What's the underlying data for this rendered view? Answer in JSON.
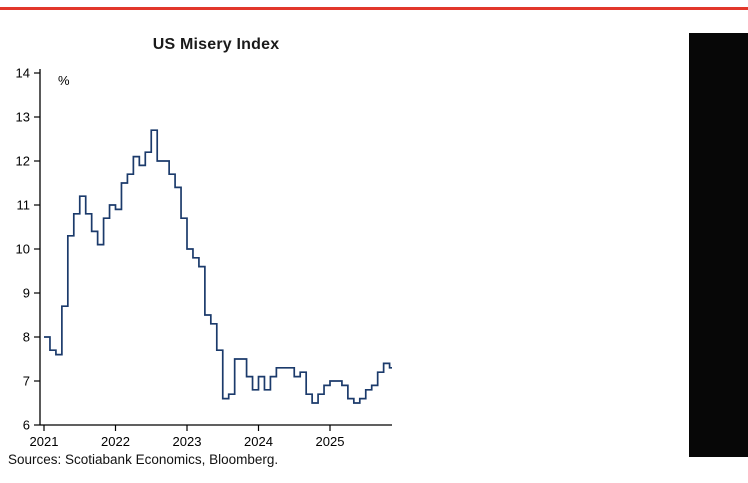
{
  "page": {
    "accent_red": "#e2372b",
    "dark_panel_color": "#070707",
    "background": "#ffffff"
  },
  "chart": {
    "title": "US Misery Index",
    "unit_label": "%"
  },
  "footer": {
    "sources": "Sources: Scotiabank Economics, Bloomberg."
  },
  "chart_data": {
    "type": "line",
    "subtype": "step-post",
    "title": "US Misery Index",
    "xlabel": "",
    "ylabel": "%",
    "ylim": [
      6,
      14
    ],
    "yticks": [
      14,
      13,
      12,
      11,
      10,
      9,
      8,
      7,
      6
    ],
    "xticks": [
      2021,
      2022,
      2023,
      2024,
      2025
    ],
    "x_start_year": 2021,
    "x_frequency": "monthly",
    "grid": false,
    "legend": "none",
    "axis_color": "#000000",
    "series": [
      {
        "name": "US Misery Index",
        "color": "#1b3a6b",
        "line_width": 1.7,
        "monthly_values": [
          8.0,
          7.7,
          7.6,
          8.7,
          10.3,
          10.8,
          11.2,
          10.8,
          10.4,
          10.1,
          10.7,
          11.0,
          10.9,
          11.5,
          11.7,
          12.1,
          11.9,
          12.2,
          12.7,
          12.0,
          12.0,
          11.7,
          11.4,
          10.7,
          10.0,
          9.8,
          9.6,
          8.5,
          8.3,
          7.7,
          6.6,
          6.7,
          7.5,
          7.5,
          7.1,
          6.8,
          7.1,
          6.8,
          7.1,
          7.3,
          7.3,
          7.3,
          7.1,
          7.2,
          6.7,
          6.5,
          6.7,
          6.9,
          7.0,
          7.0,
          6.9,
          6.6,
          6.5,
          6.6,
          6.8,
          6.9,
          7.2,
          7.4,
          7.3
        ]
      }
    ]
  }
}
